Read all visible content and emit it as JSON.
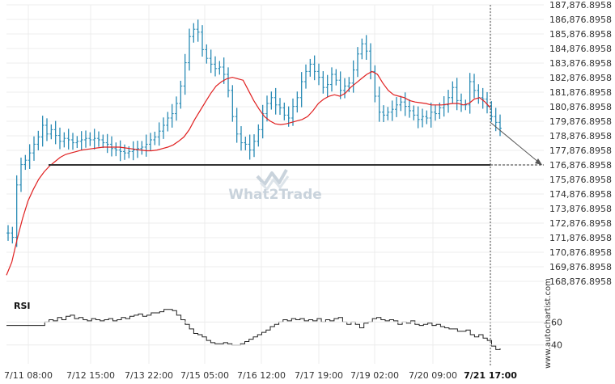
{
  "chart_data": {
    "type": "bar",
    "subtype": "ohlc",
    "y_axis": {
      "ticks": [
        "187,876.8958",
        "186,876.8958",
        "185,876.8958",
        "184,876.8958",
        "183,876.8958",
        "182,876.8958",
        "181,876.8958",
        "180,876.8958",
        "179,876.8958",
        "178,876.8958",
        "177,876.8958",
        "176,876.8958",
        "175,876.8958",
        "174,876.8958",
        "173,876.8958",
        "172,876.8958",
        "171,876.8958",
        "170,876.8958",
        "169,876.8958",
        "168,876.8958"
      ],
      "tick_values": [
        187876.8958,
        186876.8958,
        185876.8958,
        184876.8958,
        183876.8958,
        182876.8958,
        181876.8958,
        180876.8958,
        179876.8958,
        178876.8958,
        177876.8958,
        176876.8958,
        175876.8958,
        174876.8958,
        173876.8958,
        172876.8958,
        171876.8958,
        170876.8958,
        169876.8958,
        168876.8958
      ],
      "range": [
        168876.8958,
        187876.8958
      ]
    },
    "x_axis": {
      "ticks": [
        "7/11 08:00",
        "7/12 15:00",
        "7/13 22:00",
        "7/15 05:00",
        "7/16 12:00",
        "7/17 19:00",
        "7/19 02:00",
        "7/20 09:00",
        "7/21 17:00"
      ],
      "highlighted_tick": "7/21 17:00"
    },
    "price_series": [
      172200,
      171900,
      175500,
      176900,
      177200,
      177700,
      178300,
      178800,
      179600,
      179000,
      179300,
      178900,
      178500,
      178700,
      178600,
      178400,
      178500,
      178600,
      178700,
      178600,
      178700,
      178600,
      178400,
      178300,
      178000,
      177900,
      177800,
      177700,
      177800,
      177900,
      178000,
      178100,
      178300,
      178600,
      178800,
      179200,
      179600,
      180100,
      180400,
      181100,
      182300,
      183900,
      185700,
      186200,
      186000,
      184800,
      184200,
      183800,
      183500,
      183600,
      183100,
      182000,
      180200,
      179000,
      178400,
      178300,
      177900,
      178500,
      179300,
      180400,
      181100,
      181500,
      181000,
      180800,
      180300,
      180100,
      180900,
      181500,
      182600,
      183300,
      183800,
      183300,
      182900,
      182200,
      182400,
      183100,
      182700,
      182000,
      182300,
      182500,
      183400,
      184500,
      185200,
      184700,
      183300,
      181600,
      180500,
      180300,
      180500,
      180700,
      181000,
      181200,
      180900,
      180600,
      180300,
      180000,
      180200,
      180100,
      180500,
      180400,
      180800,
      181000,
      181500,
      182200,
      181300,
      181000,
      181000,
      182600,
      182000,
      181500,
      181400,
      180900,
      180200,
      179800,
      179400
    ],
    "moving_average": [
      169300,
      170200,
      171800,
      173200,
      174400,
      175200,
      175900,
      176400,
      176800,
      177100,
      177400,
      177600,
      177700,
      177800,
      177900,
      177950,
      178000,
      178050,
      178100,
      178100,
      178100,
      178100,
      178050,
      178000,
      177950,
      177900,
      177850,
      177850,
      177900,
      178000,
      178100,
      178250,
      178500,
      178800,
      179300,
      180000,
      180600,
      181200,
      181800,
      182300,
      182600,
      182800,
      182900,
      182800,
      182700,
      182000,
      181300,
      180700,
      180200,
      179900,
      179700,
      179650,
      179700,
      179800,
      179900,
      180000,
      180200,
      180600,
      181100,
      181400,
      181600,
      181700,
      181600,
      181800,
      182200,
      182500,
      182800,
      183100,
      183300,
      183100,
      182500,
      182000,
      181700,
      181600,
      181500,
      181300,
      181200,
      181150,
      181100,
      181000,
      181000,
      181000,
      181050,
      181100,
      181100,
      181000,
      181100,
      181400,
      181500,
      181200,
      180800
    ],
    "support_level": 176876.8958,
    "forecast_arrow": {
      "from": 179800,
      "to": 176876.8958
    },
    "rsi": {
      "label": "RSI",
      "ticks": [
        "60",
        "40"
      ],
      "tick_values": [
        60,
        40
      ],
      "values": [
        57,
        57,
        57,
        57,
        57,
        57,
        57,
        57,
        57,
        60,
        62,
        61,
        64,
        62,
        65,
        66,
        63,
        64,
        62,
        61,
        63,
        62,
        61,
        62,
        63,
        61,
        62,
        64,
        63,
        65,
        66,
        67,
        65,
        66,
        68,
        68,
        69,
        71,
        71,
        70,
        66,
        62,
        58,
        54,
        50,
        49,
        47,
        44,
        42,
        41,
        41,
        42,
        41,
        40,
        40,
        41,
        43,
        45,
        47,
        49,
        51,
        53,
        56,
        58,
        60,
        62,
        61,
        63,
        62,
        63,
        61,
        62,
        61,
        63,
        60,
        62,
        61,
        63,
        64,
        60,
        58,
        60,
        58,
        55,
        59,
        60,
        63,
        64,
        62,
        61,
        62,
        61,
        58,
        60,
        59,
        61,
        58,
        57,
        58,
        59,
        57,
        58,
        56,
        55,
        54,
        54,
        52,
        52,
        53,
        49,
        47,
        49,
        46,
        44,
        39,
        36,
        37
      ]
    },
    "watermark": "What2Trade",
    "side_text": "www.autochartist.com",
    "colors": {
      "bars": "#2a8bb5",
      "ma": "#e02020",
      "support": "#333333",
      "rsi": "#222222",
      "grid": "#ececec"
    }
  }
}
